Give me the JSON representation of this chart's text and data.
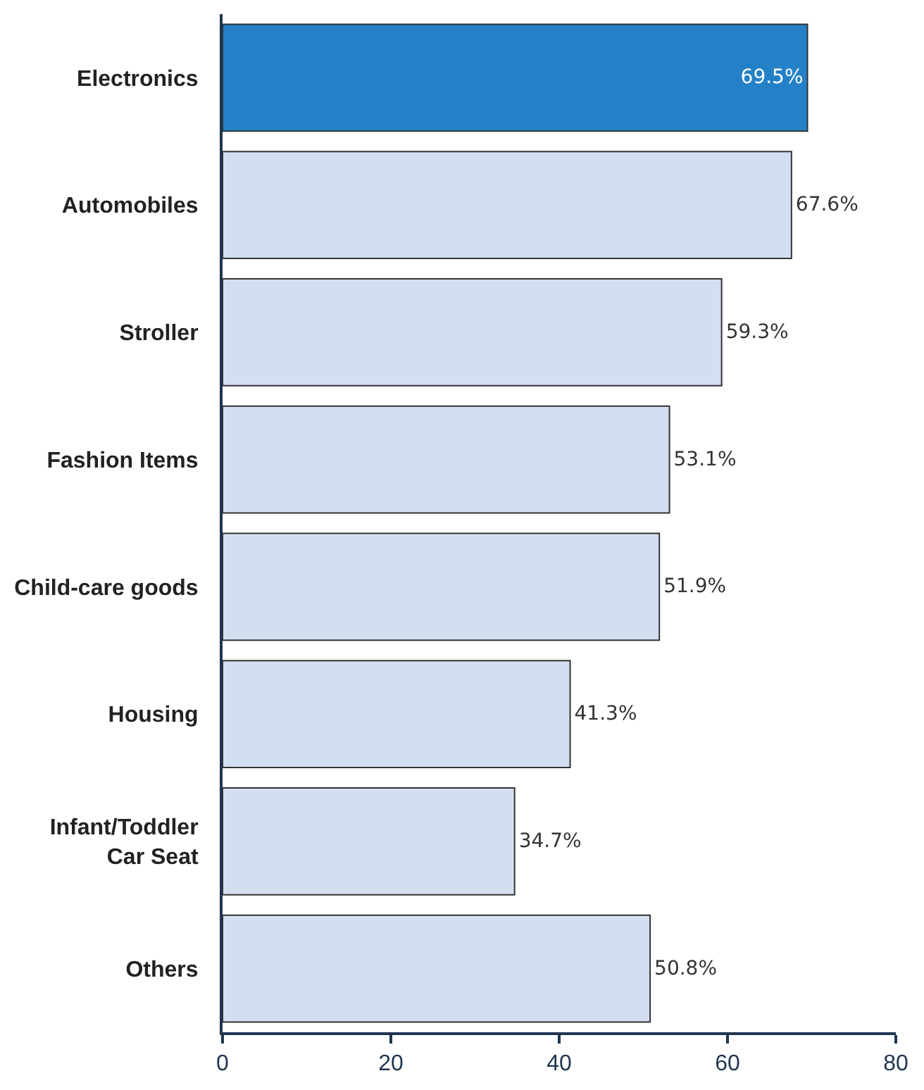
{
  "chart_data": {
    "type": "bar",
    "orientation": "horizontal",
    "categories": [
      "Electronics",
      "Automobiles",
      "Stroller",
      "Fashion Items",
      "Child-care goods",
      "Housing",
      "Infant/Toddler Car Seat",
      "Others"
    ],
    "values": [
      69.5,
      67.6,
      59.3,
      53.1,
      51.9,
      41.3,
      34.7,
      50.8
    ],
    "value_labels": [
      "69.5%",
      "67.6%",
      "59.3%",
      "53.1%",
      "51.9%",
      "41.3%",
      "34.7%",
      "50.8%"
    ],
    "colors": [
      "#2581c7",
      "#d3dff1",
      "#d3dff1",
      "#d3dff1",
      "#d3dff1",
      "#d3dff1",
      "#d3dff1",
      "#d3dff1"
    ],
    "xlim": [
      0,
      80
    ],
    "xticks": [
      0,
      20,
      40,
      60,
      80
    ]
  }
}
